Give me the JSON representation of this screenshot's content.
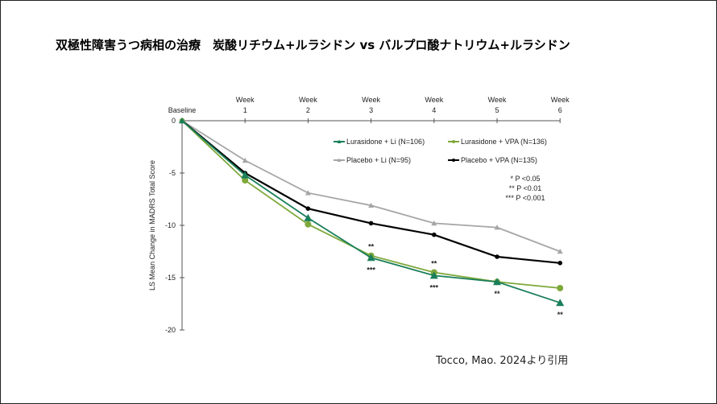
{
  "title": "双極性障害うつ病相の治療　炭酸リチウム+ルラシドン vs バルプロ酸ナトリウム+ルラシドン",
  "citation": "Tocco, Mao. 2024より引用",
  "chart_data": {
    "type": "line",
    "ylabel": "LS Mean Change in MADRS Total Score",
    "categories": [
      "Baseline",
      "Week 1",
      "Week 2",
      "Week 3",
      "Week 4",
      "Week 5",
      "Week 6"
    ],
    "ylim": [
      -20,
      0
    ],
    "yticks": [
      0,
      -5,
      -10,
      -15,
      -20
    ],
    "grid": false,
    "legend_position": "top-right",
    "series": [
      {
        "name": "Lurasidone + Li (N=106)",
        "color": "#1a7f5a",
        "marker": "triangle",
        "values": [
          0,
          -5.2,
          -9.3,
          -13.1,
          -14.8,
          -15.4,
          -17.4
        ]
      },
      {
        "name": "Lurasidone + VPA (N=136)",
        "color": "#7ea83a",
        "marker": "circle",
        "values": [
          0,
          -5.7,
          -9.9,
          -12.9,
          -14.5,
          -15.4,
          -16.0
        ]
      },
      {
        "name": "Placebo + Li (N=95)",
        "color": "#a6a6a6",
        "marker": "triangle",
        "values": [
          0,
          -3.8,
          -6.9,
          -8.1,
          -9.8,
          -10.2,
          -12.5
        ]
      },
      {
        "name": "Placebo + VPA (N=135)",
        "color": "#000000",
        "marker": "circle",
        "values": [
          0,
          -5.0,
          -8.4,
          -9.8,
          -10.9,
          -13.0,
          -13.6
        ]
      }
    ],
    "annotations": [
      {
        "category": "Week 3",
        "text": "**",
        "position": "above"
      },
      {
        "category": "Week 3",
        "text": "***",
        "position": "below"
      },
      {
        "category": "Week 4",
        "text": "**",
        "position": "above"
      },
      {
        "category": "Week 4",
        "text": "***",
        "position": "below"
      },
      {
        "category": "Week 5",
        "text": "**",
        "position": "below"
      },
      {
        "category": "Week 6",
        "text": "**",
        "position": "below"
      }
    ],
    "significance_key": [
      "* P <0.05",
      "** P <0.01",
      "*** P <0.001"
    ]
  }
}
